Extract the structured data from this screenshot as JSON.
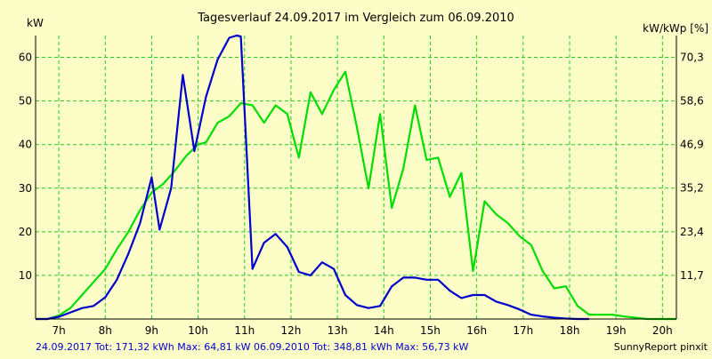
{
  "chart_data": {
    "type": "line",
    "title": "Tagesverlauf 24.09.2017 im Vergleich zum 06.09.2010",
    "y_left_label": "kW",
    "y_right_label": "kW/kWp [%]",
    "x_ticks": [
      "7h",
      "8h",
      "9h",
      "10h",
      "11h",
      "12h",
      "13h",
      "14h",
      "15h",
      "16h",
      "17h",
      "18h",
      "19h",
      "20h"
    ],
    "x_tick_hours": [
      7,
      8,
      9,
      10,
      11,
      12,
      13,
      14,
      15,
      16,
      17,
      18,
      19,
      20
    ],
    "xlim_hours": [
      6.5,
      20.3
    ],
    "ylim": [
      0,
      65
    ],
    "y_left_ticks": [
      10,
      20,
      30,
      40,
      50,
      60
    ],
    "y_right_tick_labels": [
      "11,7",
      "23,4",
      "35,2",
      "46,9",
      "58,6",
      "70,3"
    ],
    "y_right_tick_values": [
      11.7,
      23.4,
      35.2,
      46.9,
      58.6,
      70.3
    ],
    "y_right_lim": [
      0,
      76.2
    ],
    "grid": true,
    "series": [
      {
        "name": "24.09.2017",
        "color": "#0000cc",
        "x": [
          6.5,
          6.75,
          7.0,
          7.25,
          7.5,
          7.75,
          8.0,
          8.25,
          8.5,
          8.75,
          9.0,
          9.17,
          9.42,
          9.67,
          9.92,
          10.17,
          10.42,
          10.67,
          10.83,
          10.92,
          11.17,
          11.42,
          11.67,
          11.92,
          12.17,
          12.42,
          12.67,
          12.92,
          13.17,
          13.42,
          13.67,
          13.92,
          14.17,
          14.42,
          14.67,
          14.92,
          15.17,
          15.42,
          15.67,
          15.92,
          16.17,
          16.42,
          16.67,
          16.92,
          17.17,
          17.42,
          17.67,
          17.92,
          18.17,
          18.42
        ],
        "y": [
          0,
          0,
          0.5,
          1.5,
          2.5,
          3,
          5,
          9,
          15,
          22,
          32.5,
          20.5,
          30,
          56,
          38.5,
          51,
          59.5,
          64.5,
          65,
          64.8,
          11.5,
          17.5,
          19.5,
          16.5,
          10.8,
          10,
          13,
          11.5,
          5.5,
          3.2,
          2.5,
          3,
          7.5,
          9.5,
          9.5,
          9,
          9,
          6.5,
          4.8,
          5.5,
          5.5,
          4,
          3.2,
          2.2,
          1,
          0.6,
          0.3,
          0.1,
          0,
          0
        ]
      },
      {
        "name": "06.09.2010",
        "color": "#00dd00",
        "x": [
          6.5,
          6.75,
          7.0,
          7.25,
          7.5,
          7.75,
          8.0,
          8.25,
          8.5,
          8.75,
          9.0,
          9.25,
          9.5,
          9.75,
          10.0,
          10.17,
          10.42,
          10.67,
          10.92,
          11.17,
          11.42,
          11.67,
          11.92,
          12.17,
          12.42,
          12.67,
          12.92,
          13.17,
          13.42,
          13.67,
          13.92,
          14.17,
          14.42,
          14.67,
          14.92,
          15.17,
          15.42,
          15.67,
          15.92,
          16.17,
          16.42,
          16.67,
          16.92,
          17.17,
          17.42,
          17.67,
          17.92,
          18.17,
          18.42,
          18.67,
          18.92,
          19.17,
          19.42,
          19.67,
          19.92,
          20.17,
          20.3
        ],
        "y": [
          0,
          0,
          0.8,
          2.5,
          5.5,
          8.5,
          11.5,
          16,
          20,
          25,
          29,
          31,
          34,
          37.5,
          40,
          40.5,
          45,
          46.5,
          49.5,
          49,
          45,
          49,
          47,
          37,
          52,
          47,
          52.5,
          56.7,
          44,
          30,
          47,
          25.5,
          34.5,
          49,
          36.5,
          37,
          28,
          33.5,
          11,
          27,
          24,
          22,
          19,
          17,
          11,
          7,
          7.5,
          3,
          1,
          1,
          1,
          0.6,
          0.3,
          0,
          0,
          0,
          0
        ]
      }
    ]
  },
  "footer": {
    "left_text": "24.09.2017 Tot: 171,32 kWh Max: 64,81 kW 06.09.2010 Tot: 348,81 kWh Max: 56,73 kW",
    "right_text": "SunnyReport pinxit"
  },
  "colors": {
    "background": "#fdfdc8",
    "grid": "#22cc22",
    "axis": "#000000",
    "footer_text": "#0000cc"
  }
}
